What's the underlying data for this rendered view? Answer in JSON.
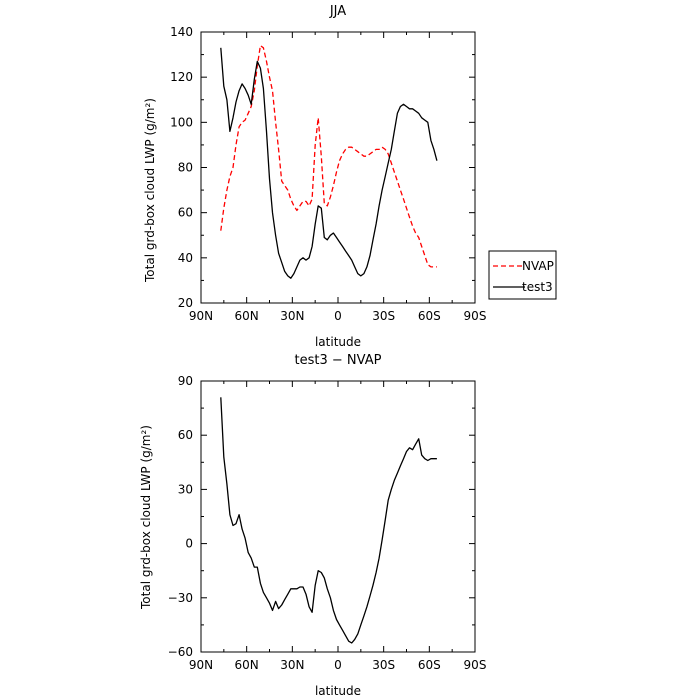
{
  "chart_data": [
    {
      "type": "line",
      "title": "JJA",
      "xlabel": "latitude",
      "ylabel": "Total grd-box cloud LWP (g/m²)",
      "xlim": [
        90,
        -90
      ],
      "ylim": [
        20,
        140
      ],
      "xtick_values": [
        90,
        60,
        30,
        0,
        -30,
        -60,
        -90
      ],
      "xtick_labels": [
        "90N",
        "60N",
        "30N",
        "0",
        "30S",
        "60S",
        "90S"
      ],
      "ytick_values": [
        20,
        40,
        60,
        80,
        100,
        120,
        140
      ],
      "ytick_labels": [
        "20",
        "40",
        "60",
        "80",
        "100",
        "120",
        "140"
      ],
      "legend": "outside-right",
      "series": [
        {
          "name": "NVAP",
          "color": "#ff0000",
          "dash": "dashed",
          "x": [
            77,
            75,
            73,
            71,
            69,
            67,
            65,
            63,
            61,
            59,
            57,
            55,
            53,
            51,
            49,
            47,
            45,
            43,
            41,
            39,
            37,
            35,
            33,
            31,
            29,
            27,
            25,
            23,
            21,
            19,
            17,
            15,
            13,
            11,
            9,
            7,
            5,
            3,
            1,
            -1,
            -3,
            -5,
            -7,
            -9,
            -11,
            -13,
            -15,
            -17,
            -19,
            -21,
            -23,
            -25,
            -27,
            -29,
            -31,
            -33,
            -35,
            -37,
            -39,
            -41,
            -43,
            -45,
            -47,
            -49,
            -51,
            -53,
            -55,
            -57,
            -59,
            -61,
            -63,
            -65
          ],
          "y": [
            52,
            62,
            70,
            76,
            80,
            90,
            98,
            100,
            101,
            104,
            107,
            114,
            125,
            134,
            133,
            127,
            120,
            114,
            100,
            88,
            74,
            72,
            70,
            66,
            63,
            61,
            63,
            65,
            65,
            63,
            66,
            90,
            102,
            85,
            64,
            63,
            67,
            72,
            78,
            83,
            86,
            88,
            89,
            89,
            88,
            87,
            86,
            85,
            85,
            86,
            87,
            88,
            88,
            89,
            88,
            86,
            82,
            78,
            74,
            70,
            66,
            62,
            58,
            54,
            51,
            49,
            45,
            41,
            37,
            36,
            36,
            36
          ]
        },
        {
          "name": "test3",
          "color": "#000000",
          "dash": "solid",
          "x": [
            77,
            75,
            73,
            71,
            69,
            67,
            65,
            63,
            61,
            59,
            57,
            55,
            53,
            51,
            49,
            47,
            45,
            43,
            41,
            39,
            37,
            35,
            33,
            31,
            29,
            27,
            25,
            23,
            21,
            19,
            17,
            15,
            13,
            11,
            9,
            7,
            5,
            3,
            1,
            -1,
            -3,
            -5,
            -7,
            -9,
            -11,
            -13,
            -15,
            -17,
            -19,
            -21,
            -23,
            -25,
            -27,
            -29,
            -31,
            -33,
            -35,
            -37,
            -39,
            -41,
            -43,
            -45,
            -47,
            -49,
            -51,
            -53,
            -55,
            -57,
            -59,
            -61,
            -63,
            -65
          ],
          "y": [
            133,
            116,
            110,
            96,
            102,
            109,
            114,
            117,
            115,
            112,
            108,
            119,
            127,
            124,
            115,
            96,
            75,
            60,
            50,
            42,
            38,
            34,
            32,
            31,
            33,
            36,
            39,
            40,
            39,
            40,
            45,
            55,
            63,
            62,
            49,
            48,
            50,
            51,
            49,
            47,
            45,
            43,
            41,
            39,
            36,
            33,
            32,
            33,
            36,
            41,
            48,
            55,
            63,
            70,
            76,
            82,
            88,
            96,
            104,
            107,
            108,
            107,
            106,
            106,
            105,
            104,
            102,
            101,
            100,
            92,
            88,
            83
          ]
        }
      ]
    },
    {
      "type": "line",
      "title": "test3 − NVAP",
      "xlabel": "latitude",
      "ylabel": "Total grd-box cloud LWP (g/m²)",
      "xlim": [
        90,
        -90
      ],
      "ylim": [
        -60,
        90
      ],
      "xtick_values": [
        90,
        60,
        30,
        0,
        -30,
        -60,
        -90
      ],
      "xtick_labels": [
        "90N",
        "60N",
        "30N",
        "0",
        "30S",
        "60S",
        "90S"
      ],
      "ytick_values": [
        -60,
        -30,
        0,
        30,
        60,
        90
      ],
      "ytick_labels": [
        "−60",
        "−30",
        "0",
        "30",
        "60",
        "90"
      ],
      "series": [
        {
          "color": "#000000",
          "dash": "solid",
          "x": [
            77,
            75,
            73,
            71,
            69,
            67,
            65,
            63,
            61,
            59,
            57,
            55,
            53,
            51,
            49,
            47,
            45,
            43,
            41,
            39,
            37,
            35,
            33,
            31,
            29,
            27,
            25,
            23,
            21,
            19,
            17,
            15,
            13,
            11,
            9,
            7,
            5,
            3,
            1,
            -1,
            -3,
            -5,
            -7,
            -9,
            -11,
            -13,
            -15,
            -17,
            -19,
            -21,
            -23,
            -25,
            -27,
            -29,
            -31,
            -33,
            -35,
            -37,
            -39,
            -41,
            -43,
            -45,
            -47,
            -49,
            -51,
            -53,
            -55,
            -57,
            -59,
            -61,
            -63,
            -65
          ],
          "y": [
            81,
            48,
            33,
            16,
            10,
            11,
            16,
            8,
            3,
            -5,
            -8,
            -13,
            -13,
            -22,
            -27,
            -30,
            -33,
            -37,
            -32,
            -36,
            -34,
            -31,
            -28,
            -25,
            -25,
            -25,
            -24,
            -24,
            -28,
            -35,
            -38,
            -23,
            -15,
            -16,
            -19,
            -25,
            -30,
            -37,
            -42,
            -45,
            -48,
            -51,
            -54,
            -55,
            -53,
            -50,
            -45,
            -40,
            -35,
            -29,
            -23,
            -16,
            -8,
            2,
            13,
            24,
            30,
            35,
            39,
            43,
            47,
            51,
            53,
            52,
            55,
            58,
            49,
            47,
            46,
            47,
            47,
            47
          ]
        }
      ]
    }
  ]
}
